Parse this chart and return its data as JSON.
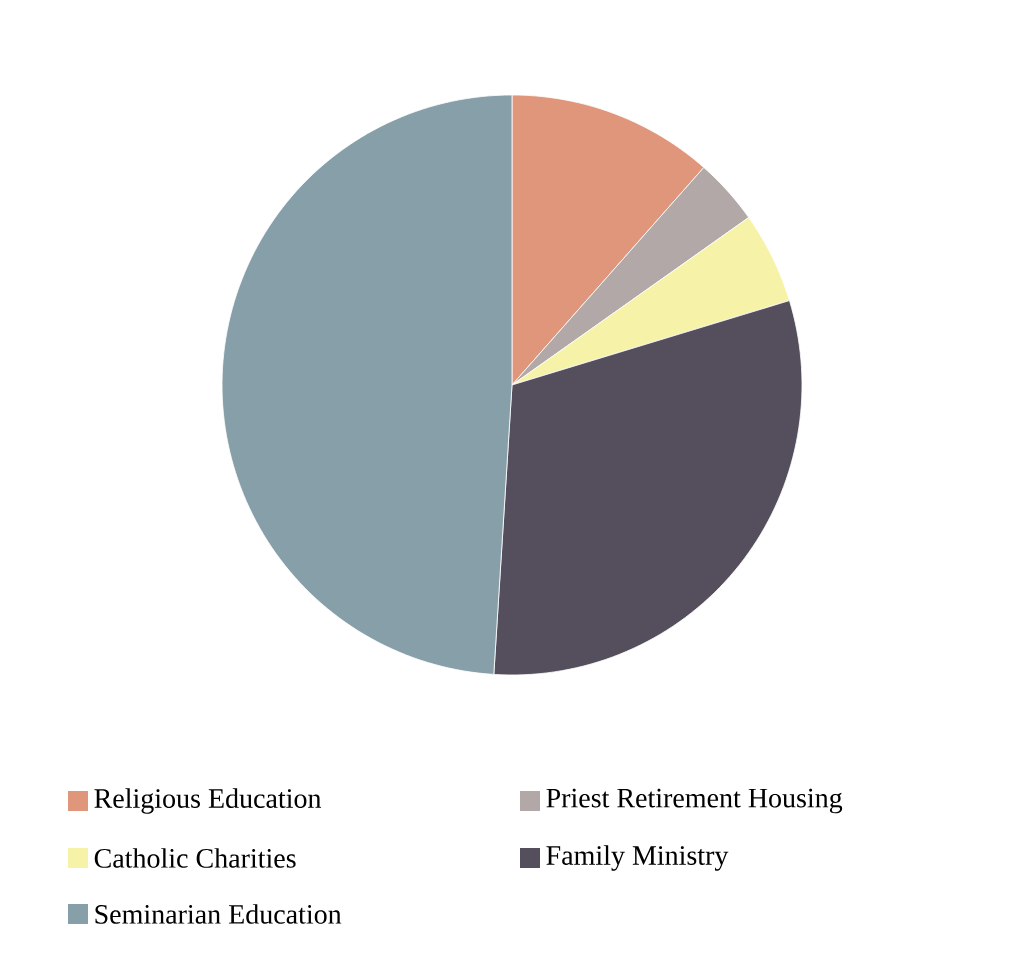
{
  "chart_data": {
    "type": "pie",
    "categories": [
      "Religious Education",
      "Priest Retirement Housing",
      "Catholic Charities",
      "Family Ministry",
      "Seminarian Education"
    ],
    "values": [
      11.5,
      3.7,
      5.1,
      30.7,
      49.0
    ],
    "colors": [
      "#e0967a",
      "#b3a8a8",
      "#f6f2a8",
      "#554e5c",
      "#879fa8"
    ],
    "legend": "bottom"
  }
}
